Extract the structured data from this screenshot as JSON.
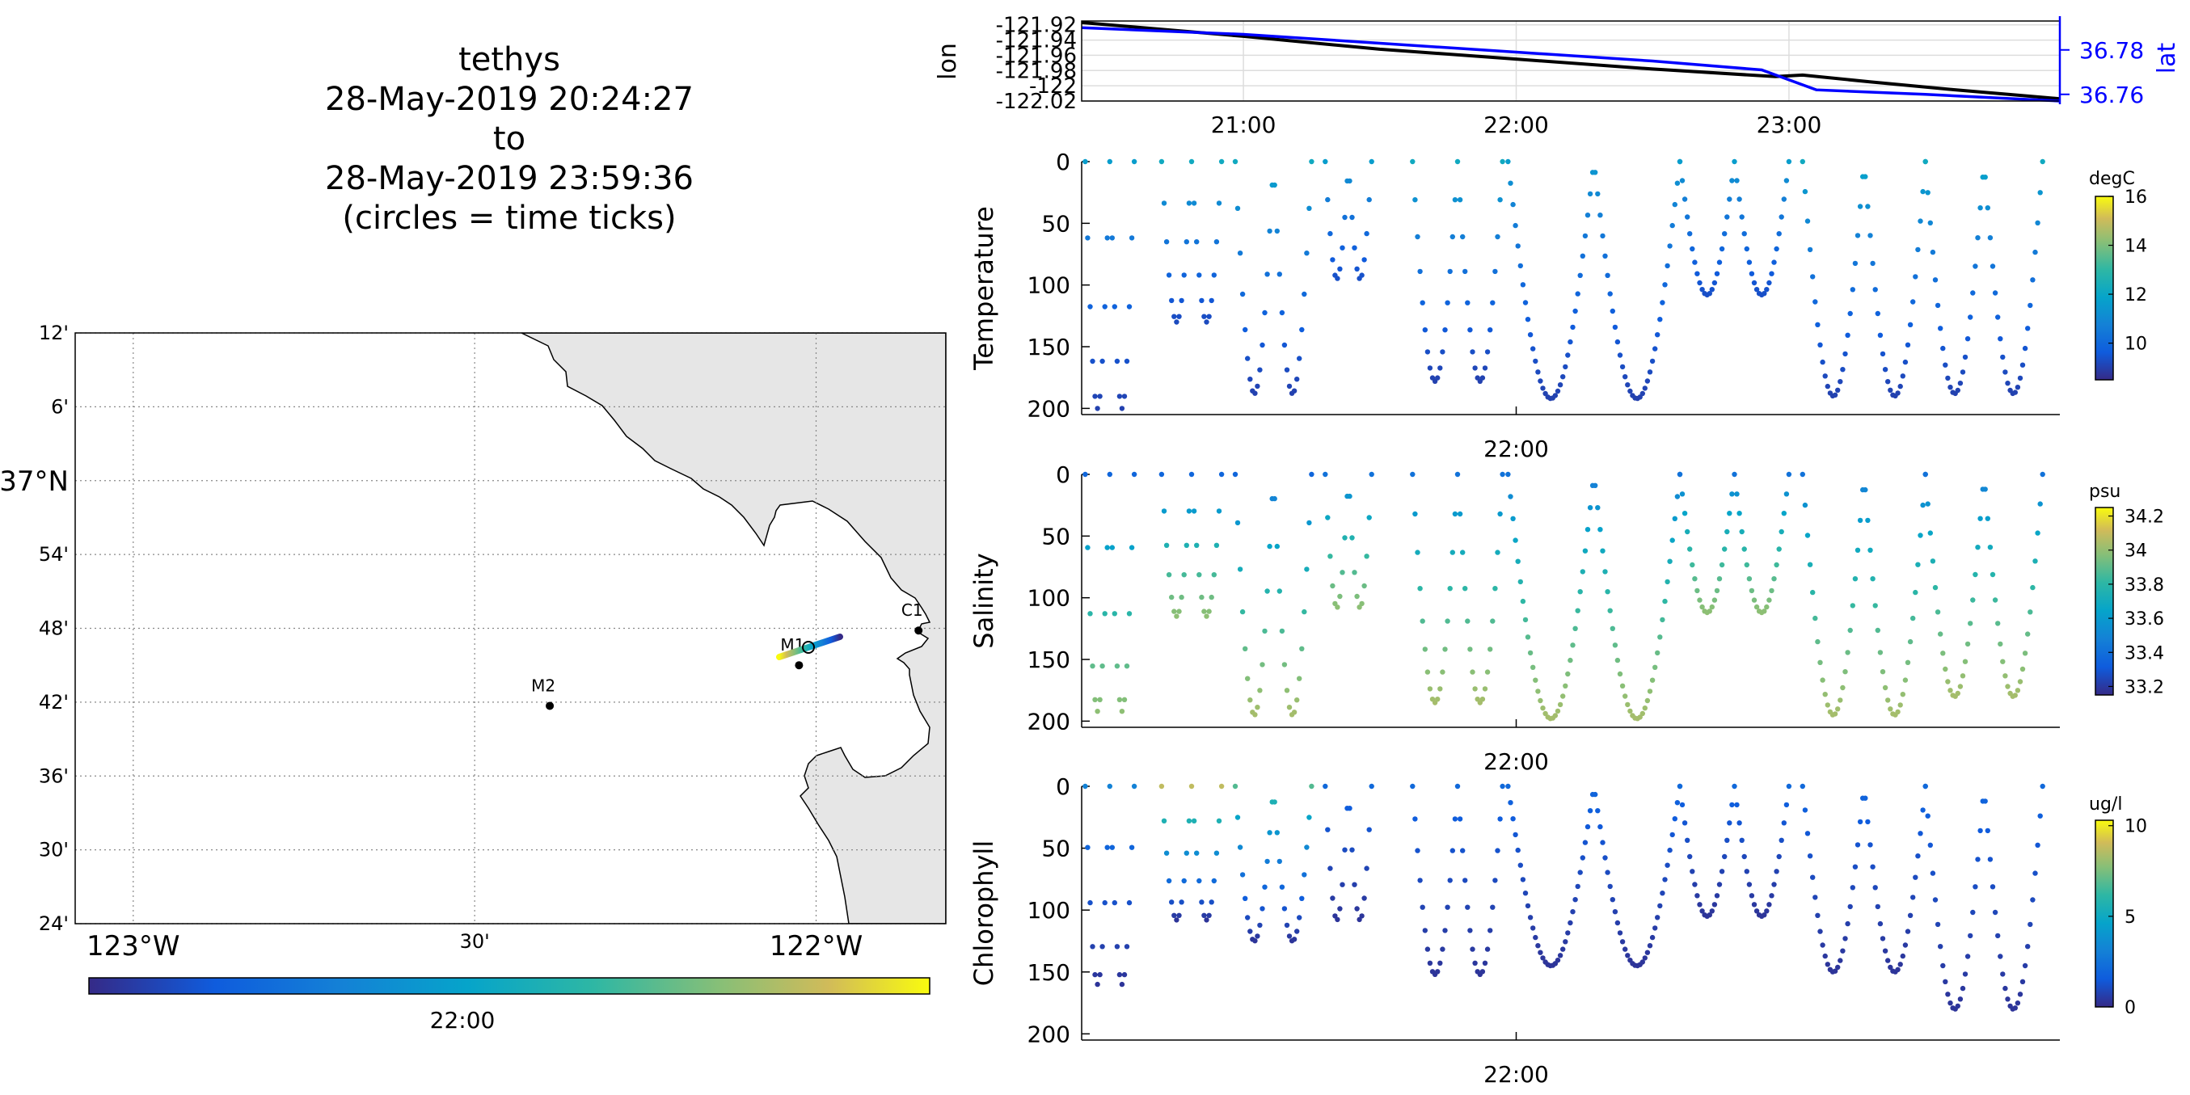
{
  "title_block": {
    "vehicle": "tethys",
    "start": "28-May-2019 20:24:27",
    "to": "to",
    "end": "28-May-2019 23:59:36",
    "note": "(circles = time ticks)"
  },
  "map": {
    "lat_ticks": [
      {
        "value": 37.2,
        "label": "12'"
      },
      {
        "value": 37.1,
        "label": "6'"
      },
      {
        "value": 37.0,
        "label": "37°N"
      },
      {
        "value": 36.9,
        "label": "54'"
      },
      {
        "value": 36.8,
        "label": "48'"
      },
      {
        "value": 36.7,
        "label": "42'"
      },
      {
        "value": 36.6,
        "label": "36'"
      },
      {
        "value": 36.5,
        "label": "30'"
      },
      {
        "value": 36.4,
        "label": "24'"
      }
    ],
    "lon_ticks": [
      {
        "value": -123.0,
        "label": "123°W"
      },
      {
        "value": -122.5,
        "label": "30'"
      },
      {
        "value": -122.0,
        "label": "122°W"
      }
    ],
    "stations": [
      {
        "name": "M1",
        "lon": -122.025,
        "lat": 36.75
      },
      {
        "name": "M2",
        "lon": -122.39,
        "lat": 36.695
      },
      {
        "name": "C1",
        "lon": -121.85,
        "lat": 36.797
      }
    ],
    "colorbar_label": "22:00",
    "land_color": "#e6e6e6"
  },
  "chart_data": [
    {
      "type": "line",
      "name": "position",
      "xlim": [
        20.407,
        23.993
      ],
      "x_ticks": [
        "21:00",
        "22:00",
        "23:00"
      ],
      "x_tick_values": [
        21,
        22,
        23
      ],
      "left_axis": {
        "label": "lon",
        "ylim": [
          -122.02,
          -121.915
        ],
        "ticks": [
          "-121.92",
          "-121.94",
          "-121.96",
          "-121.98",
          "-122",
          "-122.02"
        ],
        "tick_values": [
          -121.92,
          -121.94,
          -121.96,
          -121.98,
          -122.0,
          -122.02
        ]
      },
      "right_axis": {
        "label": "lat",
        "ylim": [
          36.757,
          36.793
        ],
        "ticks": [
          "36.78",
          "36.76"
        ],
        "tick_values": [
          36.78,
          36.76
        ]
      },
      "series": [
        {
          "axis": "left",
          "color": "#000000",
          "x": [
            20.407,
            21.0,
            21.5,
            22.0,
            22.5,
            22.95,
            23.05,
            23.3,
            23.6,
            23.993
          ],
          "y": [
            -121.917,
            -121.935,
            -121.952,
            -121.965,
            -121.978,
            -121.988,
            -121.986,
            -121.995,
            -122.005,
            -122.017
          ]
        },
        {
          "axis": "right",
          "color": "#0000ff",
          "x": [
            20.407,
            21.0,
            21.5,
            22.0,
            22.5,
            22.9,
            23.1,
            23.5,
            23.993
          ],
          "y": [
            36.79,
            36.787,
            36.783,
            36.779,
            36.775,
            36.771,
            36.762,
            36.76,
            36.757
          ]
        }
      ]
    },
    {
      "type": "scatter",
      "name": "Temperature",
      "ylabel": "Temperature",
      "unit": "degC",
      "ylim": [
        0,
        205
      ],
      "y_ticks": [
        "0",
        "50",
        "100",
        "150",
        "200"
      ],
      "y_tick_values": [
        0,
        50,
        100,
        150,
        200
      ],
      "x_tick": "22:00",
      "clim": [
        8.5,
        16
      ],
      "cbar_ticks": [
        "16",
        "14",
        "12",
        "10"
      ],
      "cbar_tick_values": [
        16,
        14,
        12,
        10
      ],
      "dives": [
        {
          "t0": 20.42,
          "t1": 20.6,
          "max_depth": 200,
          "surface_value": 11.5,
          "deep_value": 9.0
        },
        {
          "t0": 20.7,
          "t1": 20.92,
          "max_depth": 130,
          "surface_value": 12.0,
          "deep_value": 9.2
        },
        {
          "t0": 20.97,
          "t1": 21.25,
          "max_depth": 188,
          "surface_value": 12.0,
          "deep_value": 9.0
        },
        {
          "t0": 21.3,
          "t1": 21.47,
          "max_depth": 95,
          "surface_value": 11.5,
          "deep_value": 9.3
        },
        {
          "t0": 21.62,
          "t1": 21.95,
          "max_depth": 178,
          "surface_value": 12.0,
          "deep_value": 9.0
        },
        {
          "t0": 21.97,
          "t1": 22.6,
          "max_depth": 192,
          "surface_value": 11.5,
          "deep_value": 9.0
        },
        {
          "t0": 22.6,
          "t1": 23.0,
          "max_depth": 108,
          "surface_value": 11.5,
          "deep_value": 9.3
        },
        {
          "t0": 23.05,
          "t1": 23.5,
          "max_depth": 190,
          "surface_value": 12.0,
          "deep_value": 9.0
        },
        {
          "t0": 23.5,
          "t1": 23.93,
          "max_depth": 188,
          "surface_value": 12.0,
          "deep_value": 9.0
        }
      ]
    },
    {
      "type": "scatter",
      "name": "Salinity",
      "ylabel": "Salinity",
      "unit": "psu",
      "ylim": [
        0,
        205
      ],
      "y_ticks": [
        "0",
        "50",
        "100",
        "150",
        "200"
      ],
      "y_tick_values": [
        0,
        50,
        100,
        150,
        200
      ],
      "x_tick": "22:00",
      "clim": [
        33.15,
        34.25
      ],
      "cbar_ticks": [
        "34.2",
        "34",
        "33.8",
        "33.6",
        "33.4",
        "33.2"
      ],
      "cbar_tick_values": [
        34.2,
        34.0,
        33.8,
        33.6,
        33.4,
        33.2
      ],
      "dives": [
        {
          "t0": 20.42,
          "t1": 20.6,
          "max_depth": 192,
          "surface_value": 33.35,
          "deep_value": 33.95
        },
        {
          "t0": 20.7,
          "t1": 20.92,
          "max_depth": 115,
          "surface_value": 33.35,
          "deep_value": 33.95
        },
        {
          "t0": 20.97,
          "t1": 21.25,
          "max_depth": 195,
          "surface_value": 33.35,
          "deep_value": 34.0
        },
        {
          "t0": 21.3,
          "t1": 21.47,
          "max_depth": 108,
          "surface_value": 33.4,
          "deep_value": 33.95
        },
        {
          "t0": 21.62,
          "t1": 21.95,
          "max_depth": 185,
          "surface_value": 33.4,
          "deep_value": 34.0
        },
        {
          "t0": 21.97,
          "t1": 22.6,
          "max_depth": 198,
          "surface_value": 33.4,
          "deep_value": 34.0
        },
        {
          "t0": 22.6,
          "t1": 23.0,
          "max_depth": 112,
          "surface_value": 33.4,
          "deep_value": 33.95
        },
        {
          "t0": 23.05,
          "t1": 23.5,
          "max_depth": 195,
          "surface_value": 33.4,
          "deep_value": 34.0
        },
        {
          "t0": 23.5,
          "t1": 23.93,
          "max_depth": 180,
          "surface_value": 33.4,
          "deep_value": 34.0
        }
      ]
    },
    {
      "type": "scatter",
      "name": "Chlorophyll",
      "ylabel": "Chlorophyll",
      "unit": "ug/l",
      "ylim": [
        0,
        205
      ],
      "y_ticks": [
        "0",
        "50",
        "100",
        "150",
        "200"
      ],
      "y_tick_values": [
        0,
        50,
        100,
        150,
        200
      ],
      "x_tick": "22:00",
      "clim": [
        0,
        10.3
      ],
      "cbar_ticks": [
        "10",
        "5",
        "0"
      ],
      "cbar_tick_values": [
        10,
        5,
        0
      ],
      "dives": [
        {
          "t0": 20.42,
          "t1": 20.6,
          "max_depth": 160,
          "surface_value": 3.0,
          "deep_value": 0.3
        },
        {
          "t0": 20.7,
          "t1": 20.92,
          "max_depth": 108,
          "surface_value": 8.5,
          "deep_value": 0.3
        },
        {
          "t0": 20.97,
          "t1": 21.25,
          "max_depth": 125,
          "surface_value": 6.5,
          "deep_value": 0.3
        },
        {
          "t0": 21.3,
          "t1": 21.47,
          "max_depth": 108,
          "surface_value": 2.0,
          "deep_value": 0.3
        },
        {
          "t0": 21.62,
          "t1": 21.95,
          "max_depth": 152,
          "surface_value": 2.0,
          "deep_value": 0.3
        },
        {
          "t0": 21.97,
          "t1": 22.6,
          "max_depth": 145,
          "surface_value": 2.0,
          "deep_value": 0.3
        },
        {
          "t0": 22.6,
          "t1": 23.0,
          "max_depth": 105,
          "surface_value": 2.0,
          "deep_value": 0.3
        },
        {
          "t0": 23.05,
          "t1": 23.5,
          "max_depth": 150,
          "surface_value": 2.0,
          "deep_value": 0.3
        },
        {
          "t0": 23.5,
          "t1": 23.93,
          "max_depth": 180,
          "surface_value": 2.0,
          "deep_value": 0.3
        }
      ]
    }
  ]
}
